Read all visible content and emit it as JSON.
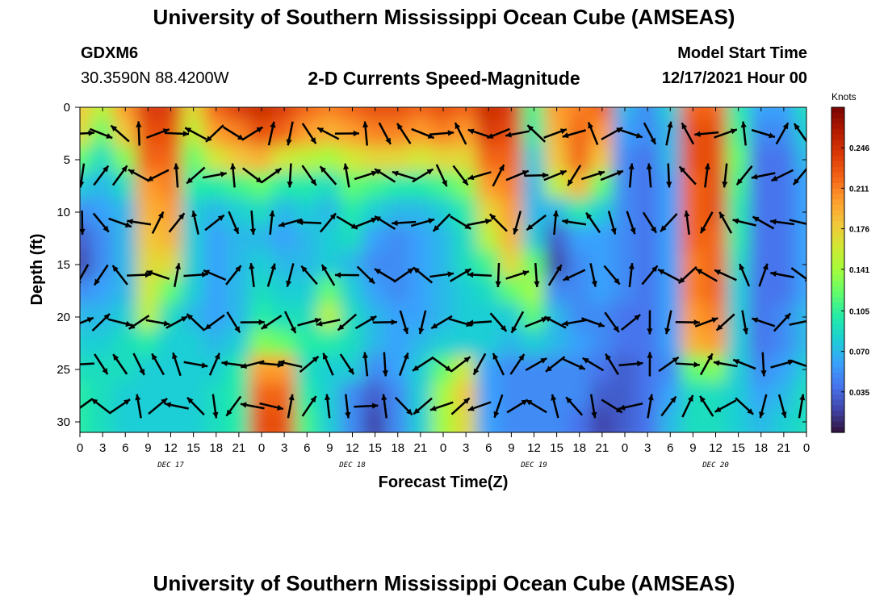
{
  "header": {
    "title": "University of Southern Mississippi Ocean Cube (AMSEAS)",
    "station": "GDXM6",
    "coords": "30.3590N  88.4200W",
    "subtitle": "2-D Currents Speed-Magnitude",
    "model_start_label": "Model Start Time",
    "model_start_value": "12/17/2021 Hour 00"
  },
  "footer": {
    "title": "University of Southern Mississippi Ocean Cube (AMSEAS)"
  },
  "chart_data": {
    "type": "heatmap",
    "xlabel": "Forecast Time(Z)",
    "ylabel": "Depth (ft)",
    "x_tick_labels": [
      "0",
      "3",
      "6",
      "9",
      "12",
      "15",
      "18",
      "21",
      "0",
      "3",
      "6",
      "9",
      "12",
      "15",
      "18",
      "21",
      "0",
      "3",
      "6",
      "9",
      "12",
      "15",
      "18",
      "21",
      "0",
      "3",
      "6",
      "9",
      "12",
      "15",
      "18",
      "21",
      "0"
    ],
    "date_labels": [
      {
        "label": "DEC 17",
        "hour": 12
      },
      {
        "label": "DEC 18",
        "hour": 36
      },
      {
        "label": "DEC 19",
        "hour": 60
      },
      {
        "label": "DEC 20",
        "hour": 84
      }
    ],
    "x_range_hours": [
      0,
      96
    ],
    "y_ticks": [
      0,
      5,
      10,
      15,
      20,
      25,
      30
    ],
    "y_range": [
      0,
      31
    ],
    "colorbar": {
      "units": "Knots",
      "ticks": [
        "0.246",
        "0.211",
        "0.176",
        "0.141",
        "0.105",
        "0.070",
        "0.035"
      ],
      "range": [
        0.0,
        0.281
      ],
      "colors": [
        "#30123b",
        "#4145ab",
        "#4675ed",
        "#39a2fc",
        "#1bcfd4",
        "#24eca6",
        "#61fc6c",
        "#a4fc3b",
        "#d1e834",
        "#f3c63a",
        "#fe9b2d",
        "#f36315",
        "#d93806",
        "#b11901",
        "#7a0402"
      ]
    },
    "speed_field": {
      "x_hours": [
        0,
        3,
        6,
        9,
        12,
        15,
        18,
        21,
        24,
        27,
        30,
        33,
        36,
        39,
        42,
        45,
        48,
        51,
        54,
        57,
        60,
        63,
        66,
        69,
        72,
        75,
        78,
        81,
        84,
        87,
        90,
        93,
        96
      ],
      "depth_ft": [
        0,
        2.5,
        5,
        7.5,
        10,
        12.5,
        15,
        17.5,
        20,
        22.5,
        25,
        27.5,
        30
      ],
      "values": [
        [
          0.18,
          0.15,
          0.2,
          0.24,
          0.24,
          0.17,
          0.22,
          0.24,
          0.25,
          0.24,
          0.22,
          0.21,
          0.22,
          0.23,
          0.23,
          0.22,
          0.23,
          0.22,
          0.25,
          0.24,
          0.11,
          0.2,
          0.21,
          0.22,
          0.07,
          0.05,
          0.08,
          0.22,
          0.22,
          0.1,
          0.06,
          0.06,
          0.09
        ],
        [
          0.17,
          0.12,
          0.18,
          0.23,
          0.23,
          0.15,
          0.2,
          0.21,
          0.23,
          0.22,
          0.2,
          0.19,
          0.2,
          0.21,
          0.21,
          0.2,
          0.21,
          0.2,
          0.24,
          0.23,
          0.1,
          0.19,
          0.22,
          0.2,
          0.06,
          0.05,
          0.07,
          0.23,
          0.23,
          0.11,
          0.05,
          0.05,
          0.08
        ],
        [
          0.12,
          0.09,
          0.13,
          0.22,
          0.22,
          0.12,
          0.16,
          0.18,
          0.19,
          0.16,
          0.15,
          0.14,
          0.16,
          0.17,
          0.17,
          0.16,
          0.17,
          0.17,
          0.22,
          0.22,
          0.08,
          0.18,
          0.22,
          0.18,
          0.05,
          0.04,
          0.07,
          0.23,
          0.23,
          0.12,
          0.04,
          0.04,
          0.07
        ],
        [
          0.08,
          0.07,
          0.09,
          0.2,
          0.21,
          0.1,
          0.1,
          0.11,
          0.12,
          0.1,
          0.1,
          0.09,
          0.12,
          0.11,
          0.1,
          0.1,
          0.11,
          0.13,
          0.2,
          0.21,
          0.07,
          0.15,
          0.19,
          0.12,
          0.05,
          0.04,
          0.06,
          0.22,
          0.23,
          0.11,
          0.04,
          0.04,
          0.06
        ],
        [
          0.05,
          0.06,
          0.07,
          0.19,
          0.2,
          0.08,
          0.07,
          0.08,
          0.09,
          0.07,
          0.08,
          0.07,
          0.1,
          0.08,
          0.07,
          0.07,
          0.08,
          0.1,
          0.17,
          0.2,
          0.07,
          0.07,
          0.1,
          0.08,
          0.05,
          0.04,
          0.06,
          0.22,
          0.23,
          0.1,
          0.04,
          0.04,
          0.06
        ],
        [
          0.03,
          0.05,
          0.07,
          0.18,
          0.19,
          0.08,
          0.06,
          0.07,
          0.07,
          0.06,
          0.07,
          0.08,
          0.09,
          0.06,
          0.05,
          0.06,
          0.07,
          0.09,
          0.15,
          0.19,
          0.08,
          0.03,
          0.06,
          0.06,
          0.05,
          0.04,
          0.06,
          0.22,
          0.22,
          0.1,
          0.04,
          0.04,
          0.06
        ],
        [
          0.02,
          0.05,
          0.07,
          0.17,
          0.17,
          0.08,
          0.06,
          0.07,
          0.08,
          0.07,
          0.07,
          0.08,
          0.07,
          0.05,
          0.05,
          0.06,
          0.07,
          0.09,
          0.11,
          0.17,
          0.12,
          0.02,
          0.05,
          0.06,
          0.05,
          0.04,
          0.06,
          0.21,
          0.22,
          0.09,
          0.04,
          0.04,
          0.06
        ],
        [
          0.05,
          0.06,
          0.07,
          0.16,
          0.12,
          0.08,
          0.06,
          0.07,
          0.09,
          0.08,
          0.08,
          0.12,
          0.08,
          0.06,
          0.05,
          0.06,
          0.07,
          0.08,
          0.09,
          0.12,
          0.14,
          0.05,
          0.05,
          0.06,
          0.05,
          0.04,
          0.06,
          0.21,
          0.22,
          0.08,
          0.04,
          0.04,
          0.06
        ],
        [
          0.07,
          0.07,
          0.08,
          0.15,
          0.09,
          0.07,
          0.06,
          0.07,
          0.1,
          0.09,
          0.09,
          0.15,
          0.09,
          0.07,
          0.06,
          0.06,
          0.07,
          0.08,
          0.08,
          0.08,
          0.12,
          0.07,
          0.05,
          0.05,
          0.04,
          0.04,
          0.06,
          0.2,
          0.21,
          0.08,
          0.04,
          0.05,
          0.07
        ],
        [
          0.08,
          0.08,
          0.09,
          0.1,
          0.08,
          0.08,
          0.07,
          0.08,
          0.13,
          0.12,
          0.1,
          0.1,
          0.09,
          0.07,
          0.06,
          0.07,
          0.08,
          0.08,
          0.08,
          0.07,
          0.08,
          0.07,
          0.06,
          0.05,
          0.04,
          0.04,
          0.06,
          0.19,
          0.2,
          0.08,
          0.04,
          0.05,
          0.07
        ],
        [
          0.09,
          0.09,
          0.09,
          0.08,
          0.08,
          0.08,
          0.08,
          0.1,
          0.2,
          0.2,
          0.09,
          0.08,
          0.08,
          0.05,
          0.06,
          0.08,
          0.12,
          0.16,
          0.06,
          0.05,
          0.05,
          0.05,
          0.05,
          0.04,
          0.03,
          0.04,
          0.05,
          0.12,
          0.13,
          0.08,
          0.05,
          0.06,
          0.08
        ],
        [
          0.1,
          0.09,
          0.08,
          0.08,
          0.08,
          0.08,
          0.09,
          0.1,
          0.22,
          0.22,
          0.1,
          0.08,
          0.05,
          0.03,
          0.05,
          0.08,
          0.14,
          0.18,
          0.06,
          0.05,
          0.05,
          0.05,
          0.05,
          0.03,
          0.03,
          0.04,
          0.06,
          0.09,
          0.09,
          0.08,
          0.06,
          0.07,
          0.09
        ],
        [
          0.1,
          0.09,
          0.08,
          0.08,
          0.08,
          0.08,
          0.09,
          0.1,
          0.23,
          0.23,
          0.11,
          0.08,
          0.05,
          0.02,
          0.05,
          0.08,
          0.14,
          0.17,
          0.06,
          0.05,
          0.05,
          0.05,
          0.04,
          0.02,
          0.03,
          0.04,
          0.07,
          0.09,
          0.09,
          0.08,
          0.07,
          0.08,
          0.09
        ]
      ]
    }
  }
}
